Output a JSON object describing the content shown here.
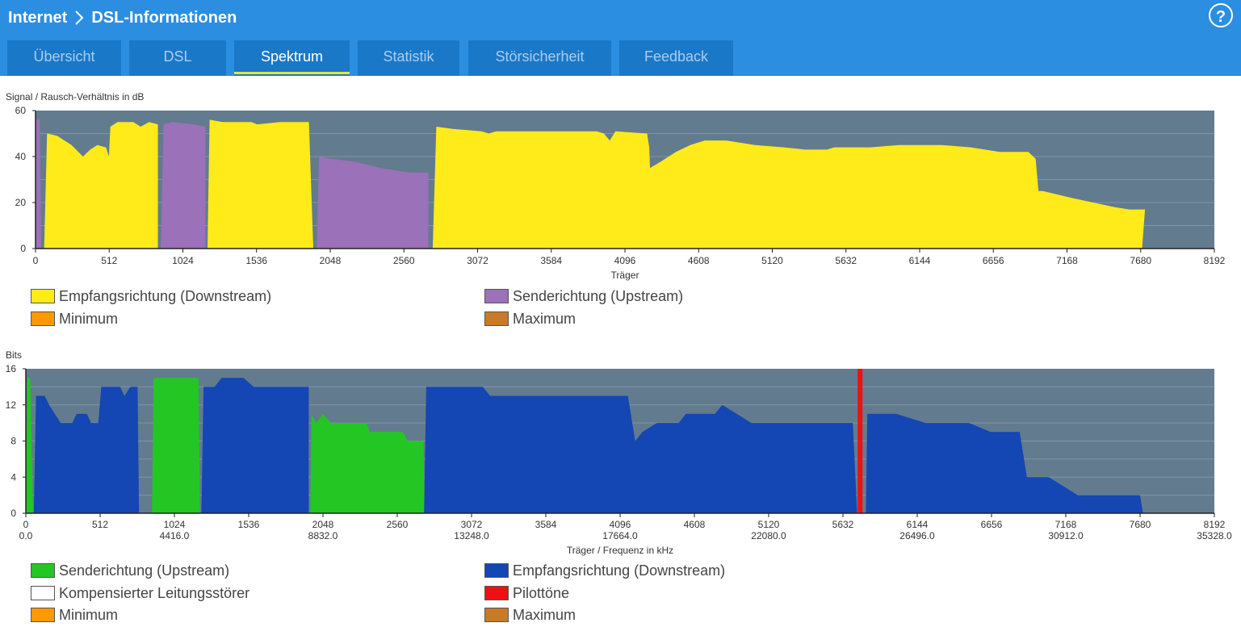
{
  "header": {
    "crumb1": "Internet",
    "crumb2": "DSL-Informationen",
    "help_label": "?"
  },
  "tabs": [
    {
      "label": "Übersicht",
      "active": false
    },
    {
      "label": "DSL",
      "active": false
    },
    {
      "label": "Spektrum",
      "active": true
    },
    {
      "label": "Statistik",
      "active": false
    },
    {
      "label": "Störsicherheit",
      "active": false
    },
    {
      "label": "Feedback",
      "active": false
    }
  ],
  "colors": {
    "downstream_snr": "#ffeb1a",
    "upstream_snr": "#9b71b9",
    "upstream_bits": "#24c624",
    "downstream_bits": "#1446b4",
    "pilot": "#ee1111",
    "plot_bg": "#637b8e",
    "minimum": "#ff9900",
    "maximum": "#c87a28",
    "compensated": "#ffffff"
  },
  "snr_legend": {
    "downstream": "Empfangsrichtung (Downstream)",
    "upstream": "Senderichtung (Upstream)",
    "minimum": "Minimum",
    "maximum": "Maximum"
  },
  "bits_legend": {
    "upstream": "Senderichtung (Upstream)",
    "downstream": "Empfangsrichtung (Downstream)",
    "compensated": "Kompensierter Leitungsstörer",
    "pilot": "Pilottöne",
    "minimum": "Minimum",
    "maximum": "Maximum"
  },
  "chart_data": [
    {
      "type": "area",
      "title": "Signal / Rausch-Verhältnis in dB",
      "xlabel": "Träger",
      "ylabel": "Signal / Rausch-Verhältnis in dB",
      "xlim": [
        0,
        8192
      ],
      "ylim": [
        0,
        60
      ],
      "x_ticks": [
        "0",
        "512",
        "1024",
        "1536",
        "2048",
        "2560",
        "3072",
        "3584",
        "4096",
        "4608",
        "5120",
        "5632",
        "6144",
        "6656",
        "7168",
        "7680",
        "8192"
      ],
      "y_ticks": [
        "0",
        "20",
        "40",
        "60"
      ],
      "series": [
        {
          "name": "Empfangsrichtung (Downstream)",
          "segments": [
            [
              [
                60,
                0
              ],
              [
                80,
                50
              ],
              [
                150,
                49
              ],
              [
                250,
                45
              ],
              [
                330,
                40
              ],
              [
                380,
                43
              ],
              [
                430,
                45
              ],
              [
                490,
                44
              ],
              [
                510,
                40
              ],
              [
                520,
                53
              ],
              [
                570,
                55
              ],
              [
                680,
                55
              ],
              [
                730,
                53
              ],
              [
                790,
                55
              ],
              [
                850,
                54
              ],
              [
                850,
                0
              ]
            ],
            [
              [
                1195,
                0
              ],
              [
                1210,
                56
              ],
              [
                1300,
                55
              ],
              [
                1400,
                55
              ],
              [
                1500,
                55
              ],
              [
                1540,
                54
              ],
              [
                1700,
                55
              ],
              [
                1900,
                55
              ],
              [
                1930,
                0
              ]
            ],
            [
              [
                2760,
                0
              ],
              [
                2785,
                53
              ],
              [
                2900,
                52
              ],
              [
                3100,
                51
              ],
              [
                3150,
                50
              ],
              [
                3200,
                51
              ],
              [
                3500,
                51
              ],
              [
                3900,
                51
              ],
              [
                3950,
                50
              ],
              [
                3990,
                47
              ],
              [
                4030,
                51
              ],
              [
                4250,
                50
              ],
              [
                4265,
                44
              ],
              [
                4270,
                35
              ],
              [
                4350,
                38
              ],
              [
                4450,
                42
              ],
              [
                4550,
                45
              ],
              [
                4650,
                47
              ],
              [
                4800,
                47
              ],
              [
                5000,
                45
              ],
              [
                5200,
                44
              ],
              [
                5350,
                43
              ],
              [
                5500,
                43
              ],
              [
                5550,
                44
              ],
              [
                5800,
                44
              ],
              [
                6000,
                45
              ],
              [
                6300,
                45
              ],
              [
                6500,
                44
              ],
              [
                6700,
                42
              ],
              [
                6900,
                42
              ],
              [
                6950,
                39
              ],
              [
                6970,
                25
              ],
              [
                7000,
                25
              ],
              [
                7200,
                22
              ],
              [
                7350,
                20
              ],
              [
                7500,
                18
              ],
              [
                7600,
                17
              ],
              [
                7680,
                17
              ],
              [
                7710,
                17
              ],
              [
                7690,
                0
              ]
            ]
          ]
        },
        {
          "name": "Senderichtung (Upstream)",
          "segments": [
            [
              [
                0,
                0
              ],
              [
                5,
                56
              ],
              [
                30,
                56
              ],
              [
                40,
                0
              ]
            ],
            [
              [
                870,
                0
              ],
              [
                890,
                54
              ],
              [
                950,
                55
              ],
              [
                1100,
                54
              ],
              [
                1180,
                53
              ],
              [
                1180,
                0
              ]
            ],
            [
              [
                1955,
                0
              ],
              [
                1970,
                40
              ],
              [
                2050,
                39
              ],
              [
                2200,
                38
              ],
              [
                2400,
                35
              ],
              [
                2600,
                33
              ],
              [
                2730,
                33
              ],
              [
                2730,
                0
              ]
            ]
          ]
        }
      ]
    },
    {
      "type": "area",
      "title": "Bits",
      "xlabel": "Träger / Frequenz in kHz",
      "ylabel": "Bits",
      "xlim": [
        0,
        8192
      ],
      "ylim": [
        0,
        16
      ],
      "x_ticks": [
        "0",
        "512",
        "1024",
        "1536",
        "2048",
        "2560",
        "3072",
        "3584",
        "4096",
        "4608",
        "5120",
        "5632",
        "6144",
        "6656",
        "7168",
        "7680",
        "8192"
      ],
      "x_ticks_khz": [
        "0.0",
        "4416.0",
        "8832.0",
        "13248.0",
        "17664.0",
        "22080.0",
        "26496.0",
        "30912.0",
        "35328.0"
      ],
      "y_ticks": [
        "0",
        "4",
        "8",
        "12",
        "16"
      ],
      "series": [
        {
          "name": "Senderichtung (Upstream)",
          "segments": [
            [
              [
                0,
                0
              ],
              [
                10,
                15
              ],
              [
                30,
                15
              ],
              [
                50,
                0
              ]
            ],
            [
              [
                870,
                0
              ],
              [
                880,
                15
              ],
              [
                1190,
                15
              ],
              [
                1200,
                0
              ]
            ],
            [
              [
                1960,
                0
              ],
              [
                1970,
                11
              ],
              [
                2000,
                10
              ],
              [
                2050,
                11
              ],
              [
                2100,
                10
              ],
              [
                2350,
                10
              ],
              [
                2370,
                9
              ],
              [
                2600,
                9
              ],
              [
                2630,
                8
              ],
              [
                2740,
                8
              ],
              [
                2750,
                0
              ]
            ]
          ]
        },
        {
          "name": "Empfangsrichtung (Downstream)",
          "segments": [
            [
              [
                55,
                0
              ],
              [
                70,
                13
              ],
              [
                130,
                13
              ],
              [
                160,
                12
              ],
              [
                200,
                11
              ],
              [
                240,
                10
              ],
              [
                320,
                10
              ],
              [
                350,
                11
              ],
              [
                420,
                11
              ],
              [
                450,
                10
              ],
              [
                500,
                10
              ],
              [
                520,
                14
              ],
              [
                560,
                14
              ],
              [
                650,
                14
              ],
              [
                680,
                13
              ],
              [
                720,
                14
              ],
              [
                770,
                14
              ],
              [
                780,
                0
              ]
            ],
            [
              [
                1210,
                0
              ],
              [
                1225,
                14
              ],
              [
                1300,
                14
              ],
              [
                1350,
                15
              ],
              [
                1500,
                15
              ],
              [
                1570,
                14
              ],
              [
                1800,
                14
              ],
              [
                1950,
                14
              ],
              [
                1950,
                0
              ]
            ],
            [
              [
                2745,
                0
              ],
              [
                2760,
                14
              ],
              [
                3000,
                14
              ],
              [
                3150,
                14
              ],
              [
                3200,
                13
              ],
              [
                3600,
                13
              ],
              [
                3900,
                13
              ],
              [
                4150,
                13
              ],
              [
                4200,
                8
              ],
              [
                4250,
                9
              ],
              [
                4350,
                10
              ],
              [
                4500,
                10
              ],
              [
                4550,
                11
              ],
              [
                4750,
                11
              ],
              [
                4800,
                12
              ],
              [
                4900,
                11
              ],
              [
                5000,
                10
              ],
              [
                5300,
                10
              ],
              [
                5700,
                10
              ],
              [
                5730,
                0
              ]
            ],
            [
              [
                5790,
                0
              ],
              [
                5800,
                11
              ],
              [
                6000,
                11
              ],
              [
                6200,
                10
              ],
              [
                6500,
                10
              ],
              [
                6650,
                9
              ],
              [
                6850,
                9
              ],
              [
                6900,
                4
              ],
              [
                7050,
                4
              ],
              [
                7150,
                3
              ],
              [
                7250,
                2
              ],
              [
                7600,
                2
              ],
              [
                7680,
                2
              ],
              [
                7700,
                0
              ]
            ]
          ]
        },
        {
          "name": "Pilottöne",
          "segments": [],
          "pilot_carriers": [
            5750
          ]
        }
      ]
    }
  ]
}
